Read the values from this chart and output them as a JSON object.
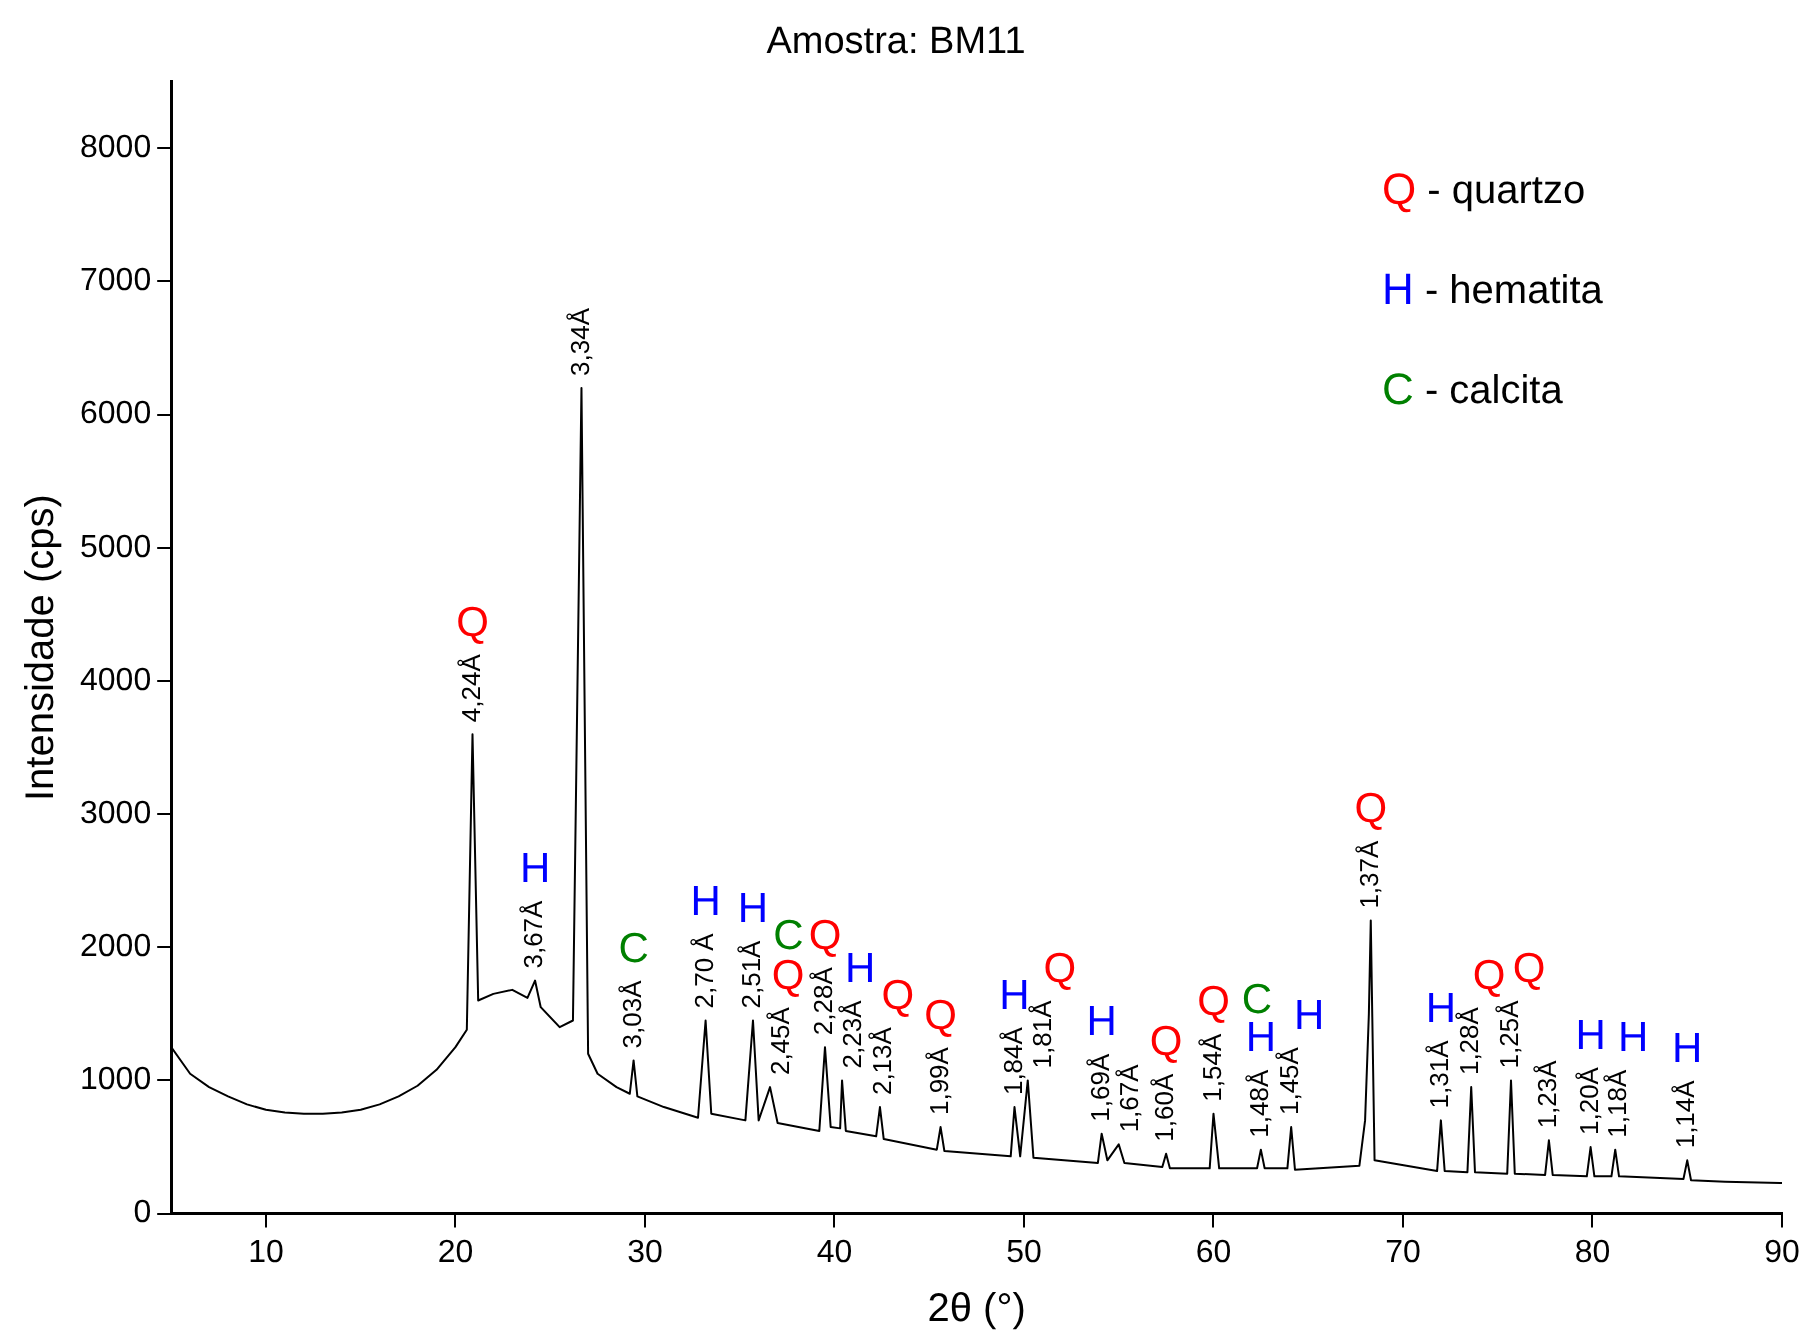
{
  "chart_data": {
    "type": "line",
    "title": "Amostra: BM11",
    "xlabel": "2θ (°)",
    "ylabel": "Intensidade (cps)",
    "xlim": [
      5,
      90
    ],
    "xticks": [
      10,
      20,
      30,
      40,
      50,
      60,
      70,
      80,
      90
    ],
    "ylim": [
      0,
      8500
    ],
    "yticks": [
      0,
      1000,
      2000,
      3000,
      4000,
      5000,
      6000,
      7000,
      8000
    ],
    "grid": false,
    "marker": "none",
    "line_style": "solid",
    "series": [
      {
        "color": "#000000",
        "x": [
          5,
          6,
          7,
          8,
          9,
          10,
          11,
          12,
          13,
          14,
          15,
          16,
          17,
          18,
          19,
          20,
          20.6,
          20.9,
          21.2,
          22,
          23,
          23.8,
          24.2,
          24.5,
          25.5,
          26.2,
          26.65,
          27.0,
          27.5,
          28.5,
          29.2,
          29.4,
          29.6,
          31,
          32.8,
          33.2,
          33.5,
          35.3,
          35.7,
          36.0,
          36.6,
          37,
          39.2,
          39.5,
          39.8,
          40.3,
          40.4,
          40.6,
          42.2,
          42.4,
          42.6,
          45.4,
          45.6,
          45.8,
          49.3,
          49.5,
          49.8,
          50.2,
          50.5,
          53.9,
          54.1,
          54.4,
          55.0,
          55.3,
          57.3,
          57.5,
          57.7,
          59.8,
          60.0,
          60.3,
          62.3,
          62.5,
          62.7,
          63.9,
          64.1,
          64.3,
          67.7,
          68.0,
          68.2,
          68.3,
          68.5,
          71.8,
          72.0,
          72.2,
          73.4,
          73.6,
          73.8,
          75.5,
          75.7,
          75.9,
          77.5,
          77.7,
          77.9,
          79.7,
          79.9,
          80.1,
          81.0,
          81.2,
          81.4,
          84.8,
          85.0,
          85.2,
          87,
          90
        ],
        "values": [
          1250,
          1050,
          950,
          880,
          820,
          780,
          760,
          750,
          750,
          760,
          780,
          820,
          880,
          960,
          1080,
          1250,
          1380,
          3600,
          1600,
          1650,
          1680,
          1620,
          1750,
          1550,
          1400,
          1450,
          6200,
          1200,
          1050,
          950,
          900,
          1150,
          880,
          800,
          720,
          1450,
          750,
          700,
          1450,
          700,
          950,
          680,
          620,
          1250,
          650,
          640,
          1000,
          620,
          580,
          800,
          560,
          480,
          650,
          470,
          430,
          800,
          430,
          1000,
          420,
          380,
          600,
          400,
          520,
          380,
          350,
          450,
          340,
          340,
          750,
          340,
          340,
          480,
          340,
          340,
          650,
          330,
          360,
          700,
          1500,
          2200,
          400,
          320,
          700,
          320,
          310,
          950,
          310,
          300,
          1000,
          300,
          290,
          550,
          290,
          280,
          500,
          280,
          280,
          480,
          280,
          260,
          400,
          250,
          240,
          230
        ]
      }
    ],
    "annotations": [
      "Q - quartzo",
      "H - hematita",
      "C - calcita",
      {
        "text": "4,24Å",
        "x": 20.9,
        "y": 3600
      },
      {
        "text": "Q",
        "x": 20.9,
        "y": 3600
      },
      {
        "text": "3,34Å",
        "x": 26.65,
        "y": 6200
      },
      {
        "text": "3,67Å",
        "x": 24.2,
        "y": 1750
      },
      {
        "text": "H",
        "x": 24.2,
        "y": 1750
      },
      {
        "text": "3,03Å",
        "x": 29.4,
        "y": 1150
      },
      {
        "text": "C",
        "x": 29.4,
        "y": 1150
      },
      {
        "text": "2,70 Å",
        "x": 33.2,
        "y": 1450
      },
      {
        "text": "H",
        "x": 33.2,
        "y": 1450
      },
      {
        "text": "2,51Å",
        "x": 35.7,
        "y": 1450
      },
      {
        "text": "H",
        "x": 35.7,
        "y": 1450
      },
      {
        "text": "2,45Å",
        "x": 36.6,
        "y": 950
      },
      {
        "text": "Q",
        "x": 36.6,
        "y": 950
      },
      {
        "text": "2,28Å",
        "x": 39.5,
        "y": 1250
      },
      {
        "text": "Q",
        "x": 39.5,
        "y": 1250
      },
      {
        "text": "C",
        "x": 39.5,
        "y": 1250
      },
      {
        "text": "2,23Å",
        "x": 40.4,
        "y": 1000
      },
      {
        "text": "H",
        "x": 40.4,
        "y": 1000
      },
      {
        "text": "2,13Å",
        "x": 42.4,
        "y": 800
      },
      {
        "text": "Q",
        "x": 42.4,
        "y": 800
      },
      {
        "text": "1,99Å",
        "x": 45.6,
        "y": 650
      },
      {
        "text": "Q",
        "x": 45.6,
        "y": 650
      },
      {
        "text": "1,84Å",
        "x": 49.5,
        "y": 800
      },
      {
        "text": "H",
        "x": 49.5,
        "y": 800
      },
      {
        "text": "1,81Å",
        "x": 50.2,
        "y": 1000
      },
      {
        "text": "Q",
        "x": 50.2,
        "y": 1000
      },
      {
        "text": "1,69Å",
        "x": 54.1,
        "y": 600
      },
      {
        "text": "H",
        "x": 54.1,
        "y": 600
      },
      {
        "text": "1,67Å",
        "x": 55.0,
        "y": 520
      },
      {
        "text": "1,60Å",
        "x": 57.5,
        "y": 450
      },
      {
        "text": "Q",
        "x": 57.5,
        "y": 450
      },
      {
        "text": "1,54Å",
        "x": 60.0,
        "y": 750
      },
      {
        "text": "Q",
        "x": 60.0,
        "y": 750
      },
      {
        "text": "1,48Å",
        "x": 62.5,
        "y": 480
      },
      {
        "text": "H",
        "x": 62.5,
        "y": 480
      },
      {
        "text": "1,45Å",
        "x": 64.1,
        "y": 650
      },
      {
        "text": "H",
        "x": 64.1,
        "y": 650
      },
      {
        "text": "C",
        "x": 64.1,
        "y": 650
      },
      {
        "text": "1,37Å",
        "x": 68.3,
        "y": 2200
      },
      {
        "text": "Q",
        "x": 68.3,
        "y": 2200
      },
      {
        "text": "1,31Å",
        "x": 72.0,
        "y": 700
      },
      {
        "text": "H",
        "x": 72.0,
        "y": 700
      },
      {
        "text": "1,28Å",
        "x": 73.6,
        "y": 950
      },
      {
        "text": "Q",
        "x": 73.6,
        "y": 950
      },
      {
        "text": "1,25Å",
        "x": 75.7,
        "y": 1000
      },
      {
        "text": "Q",
        "x": 75.7,
        "y": 1000
      },
      {
        "text": "1,23Å",
        "x": 77.7,
        "y": 550
      },
      {
        "text": "1,20Å",
        "x": 79.9,
        "y": 500
      },
      {
        "text": "H",
        "x": 79.9,
        "y": 500
      },
      {
        "text": "1,18Å",
        "x": 81.2,
        "y": 480
      },
      {
        "text": "H",
        "x": 81.2,
        "y": 480
      },
      {
        "text": "1,14Å",
        "x": 85.0,
        "y": 400
      },
      {
        "text": "H",
        "x": 85.0,
        "y": 400
      }
    ]
  }
}
